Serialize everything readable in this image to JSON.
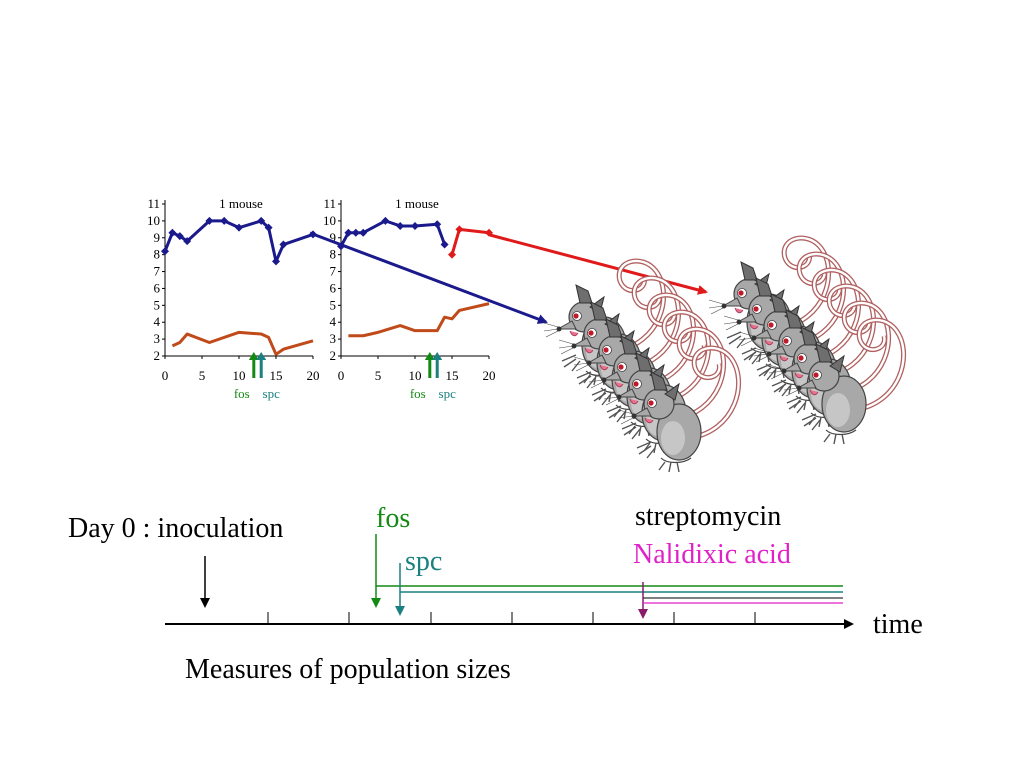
{
  "panels": [
    {
      "title": "1 mouse",
      "x_ticks": [
        "0",
        "5",
        "10",
        "15",
        "20"
      ],
      "y_ticks": [
        "2",
        "3",
        "4",
        "5",
        "6",
        "7",
        "8",
        "9",
        "10",
        "11"
      ],
      "marker_labels": {
        "fos": "fos",
        "spc": "spc"
      }
    },
    {
      "title": "1 mouse",
      "x_ticks": [
        "0",
        "5",
        "10",
        "15",
        "20"
      ],
      "y_ticks": [
        "2",
        "3",
        "4",
        "5",
        "6",
        "7",
        "8",
        "9",
        "10",
        "11"
      ],
      "marker_labels": {
        "fos": "fos",
        "spc": "spc"
      }
    }
  ],
  "chart_data": [
    {
      "type": "line",
      "title": "1 mouse",
      "xlim": [
        0,
        20
      ],
      "ylim": [
        2,
        11
      ],
      "series": [
        {
          "color": "#1a1a8c",
          "markers": true,
          "x": [
            0,
            1,
            2,
            3,
            6,
            8,
            10,
            13,
            14,
            15,
            16,
            20
          ],
          "y": [
            8.2,
            9.3,
            9.1,
            8.8,
            10.0,
            10.0,
            9.6,
            10.0,
            9.6,
            7.6,
            8.6,
            9.2
          ]
        },
        {
          "color": "#c04a1a",
          "markers": false,
          "x": [
            1,
            2,
            3,
            6,
            10,
            13,
            14,
            15,
            16,
            20
          ],
          "y": [
            2.6,
            2.8,
            3.3,
            2.8,
            3.4,
            3.3,
            3.1,
            2.1,
            2.4,
            2.9
          ]
        }
      ],
      "arrows": [
        {
          "label": "fos",
          "x": 12,
          "color": "#138a13"
        },
        {
          "label": "spc",
          "x": 13,
          "color": "#1a8080"
        }
      ]
    },
    {
      "type": "line",
      "title": "1 mouse",
      "xlim": [
        0,
        20
      ],
      "ylim": [
        2,
        11
      ],
      "series": [
        {
          "color": "#1a1a8c",
          "markers": true,
          "x": [
            0,
            1,
            2,
            3,
            6,
            8,
            10,
            13,
            14
          ],
          "y": [
            8.5,
            9.3,
            9.3,
            9.3,
            10.0,
            9.7,
            9.7,
            9.8,
            8.6
          ]
        },
        {
          "color": "#e01a1a",
          "markers": true,
          "x": [
            15,
            16,
            20
          ],
          "y": [
            8.0,
            9.5,
            9.3
          ]
        },
        {
          "color": "#c04a1a",
          "markers": false,
          "x": [
            1,
            3,
            5,
            8,
            10,
            13,
            14,
            15,
            16,
            20
          ],
          "y": [
            3.2,
            3.2,
            3.4,
            3.8,
            3.5,
            3.5,
            4.3,
            4.2,
            4.7,
            5.1
          ]
        }
      ],
      "arrows": [
        {
          "label": "fos",
          "x": 12,
          "color": "#138a13"
        },
        {
          "label": "spc",
          "x": 13,
          "color": "#1a8080"
        }
      ]
    }
  ],
  "timeline": {
    "inoculation_label": "Day 0 : inoculation",
    "time_label": "time",
    "measures_label": "Measures of  population sizes",
    "fos_label": "fos",
    "spc_label": "spc",
    "streptomycin_label": "streptomycin",
    "nalidixic_label": "Nalidixic acid"
  },
  "colors": {
    "blue_line": "#1a1a8c",
    "orange_line": "#c04a1a",
    "red_line": "#e01a1a",
    "fos": "#138a13",
    "spc": "#1a8080",
    "nalidixic": "#e020c8",
    "mouse_body": "#a8a8a8",
    "mouse_tail": "#b06060"
  },
  "icons": [
    "mouse-group-icon",
    "mouse-group-icon"
  ]
}
